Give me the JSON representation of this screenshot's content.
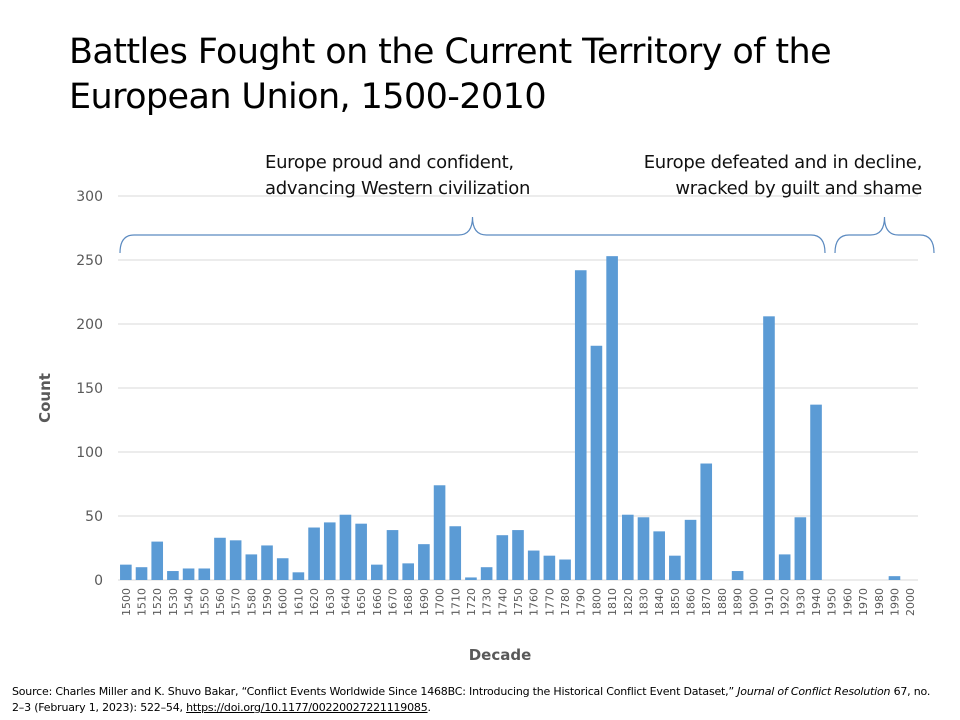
{
  "chart_data": {
    "type": "bar",
    "title": "Battles Fought on the Current Territory of the European Union, 1500-2010",
    "xlabel": "Decade",
    "ylabel": "Count",
    "ylim": [
      0,
      300
    ],
    "yticks": [
      0,
      50,
      100,
      150,
      200,
      250,
      300
    ],
    "grid": true,
    "bar_color": "#5b9bd5",
    "categories": [
      "1500",
      "1510",
      "1520",
      "1530",
      "1540",
      "1550",
      "1560",
      "1570",
      "1580",
      "1590",
      "1600",
      "1610",
      "1620",
      "1630",
      "1640",
      "1650",
      "1660",
      "1670",
      "1680",
      "1690",
      "1700",
      "1710",
      "1720",
      "1730",
      "1740",
      "1750",
      "1760",
      "1770",
      "1780",
      "1790",
      "1800",
      "1810",
      "1820",
      "1830",
      "1840",
      "1850",
      "1860",
      "1870",
      "1880",
      "1890",
      "1900",
      "1910",
      "1920",
      "1930",
      "1940",
      "1950",
      "1960",
      "1970",
      "1980",
      "1990",
      "2000"
    ],
    "values": [
      12,
      10,
      30,
      7,
      9,
      9,
      33,
      31,
      20,
      27,
      17,
      6,
      41,
      45,
      51,
      44,
      12,
      39,
      13,
      28,
      74,
      42,
      2,
      10,
      35,
      39,
      23,
      19,
      16,
      242,
      183,
      253,
      51,
      49,
      38,
      19,
      47,
      91,
      0,
      7,
      0,
      206,
      20,
      49,
      137,
      0,
      0,
      0,
      0,
      3,
      0
    ],
    "annotations": [
      {
        "text_lines": [
          "Europe proud and confident,",
          "advancing Western civilization"
        ],
        "brace_from": "1500",
        "brace_to": "1940",
        "align": "left"
      },
      {
        "text_lines": [
          "Europe defeated and in decline,",
          "wracked by guilt and shame"
        ],
        "brace_from": "1950",
        "brace_to": "2000",
        "align": "right"
      }
    ]
  },
  "source": {
    "prefix": "Source: Charles Miller and K. Shuvo Bakar, “Conflict Events Worldwide Since 1468BC: Introducing the Historical Conflict Event Dataset,” ",
    "journal": "Journal of Conflict Resolution",
    "details": " 67, no. 2–3 (February 1, 2023): 522–54, ",
    "link": "https://doi.org/10.1177/00220027221119085",
    "suffix": "."
  }
}
